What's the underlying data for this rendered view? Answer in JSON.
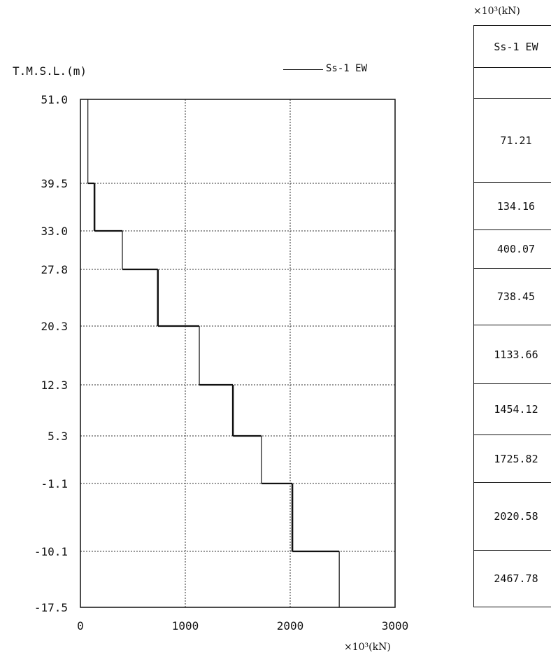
{
  "chart_data": {
    "type": "line",
    "y_axis_title": "T.M.S.L.(m)",
    "x_unit": "×10³(kN)",
    "xlim": [
      0,
      3000
    ],
    "x_ticks": [
      "0",
      "1000",
      "2000",
      "3000"
    ],
    "y_ticks": [
      "51.0",
      "39.5",
      "33.0",
      "27.8",
      "20.3",
      "12.3",
      "5.3",
      "-1.1",
      "-10.1",
      "-17.5"
    ],
    "grid": true,
    "legend_position": "top-right",
    "series": [
      {
        "name": "Ss-1 EW",
        "steps": [
          {
            "from": 51.0,
            "to": 39.5,
            "value": 71.21
          },
          {
            "from": 39.5,
            "to": 33.0,
            "value": 134.16
          },
          {
            "from": 33.0,
            "to": 27.8,
            "value": 400.07
          },
          {
            "from": 27.8,
            "to": 20.3,
            "value": 738.45
          },
          {
            "from": 20.3,
            "to": 12.3,
            "value": 1133.66
          },
          {
            "from": 12.3,
            "to": 5.3,
            "value": 1454.12
          },
          {
            "from": 5.3,
            "to": -1.1,
            "value": 1725.82
          },
          {
            "from": -1.1,
            "to": -10.1,
            "value": 2020.58
          },
          {
            "from": -10.1,
            "to": -17.5,
            "value": 2467.78
          }
        ]
      }
    ]
  },
  "table": {
    "unit": "×10³(kN)",
    "header": "Ss-1 EW",
    "values": [
      "71.21",
      "134.16",
      "400.07",
      "738.45",
      "1133.66",
      "1454.12",
      "1725.82",
      "2020.58",
      "2467.78"
    ]
  }
}
